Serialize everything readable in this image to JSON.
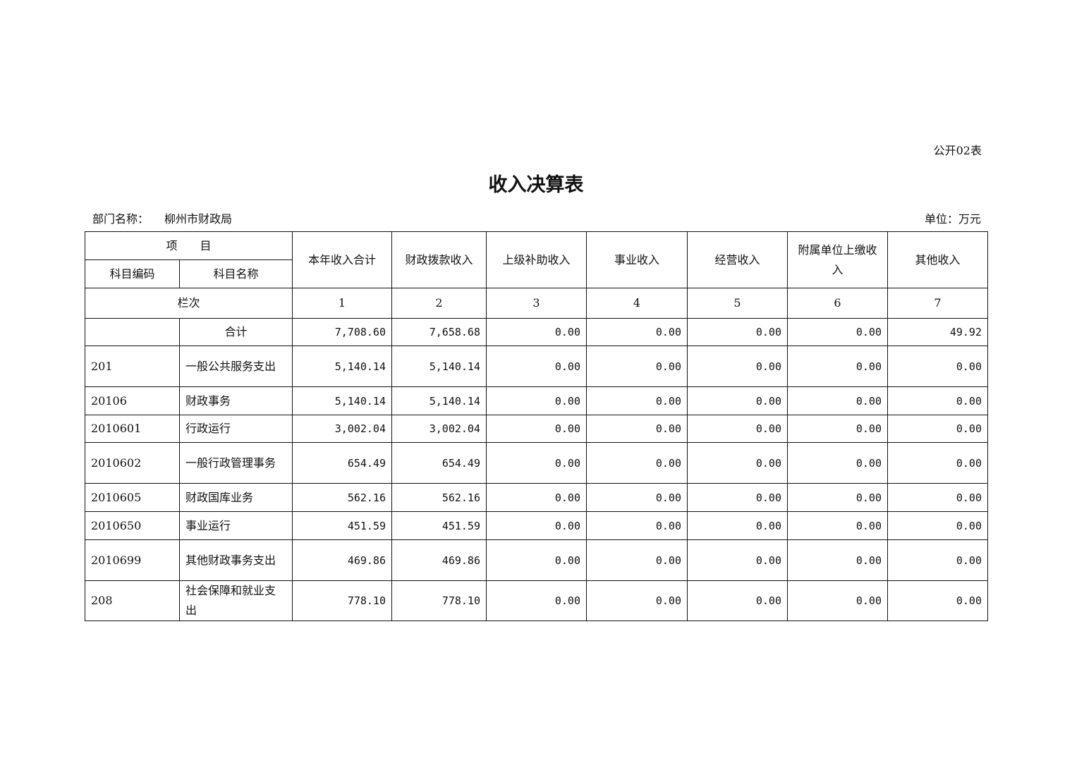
{
  "form_no": "公开02表",
  "title": "收入决算表",
  "dept_label": "部门名称：",
  "dept_name": "柳州市财政局",
  "unit": "单位：万元",
  "header": {
    "item": "项　　目",
    "code": "科目编码",
    "name": "科目名称",
    "columns": [
      "本年收入合计",
      "财政拨款收入",
      "上级补助收入",
      "事业收入",
      "经营收入",
      "附属单位上缴收入",
      "其他收入"
    ],
    "row_label": "栏次",
    "col_numbers": [
      "1",
      "2",
      "3",
      "4",
      "5",
      "6",
      "7"
    ]
  },
  "rows": [
    {
      "code": "",
      "name": "合计",
      "values": [
        "7,708.60",
        "7,658.68",
        "0.00",
        "0.00",
        "0.00",
        "0.00",
        "49.92"
      ]
    },
    {
      "code": "201",
      "name": "一般公共服务支出",
      "values": [
        "5,140.14",
        "5,140.14",
        "0.00",
        "0.00",
        "0.00",
        "0.00",
        "0.00"
      ]
    },
    {
      "code": "20106",
      "name": "财政事务",
      "values": [
        "5,140.14",
        "5,140.14",
        "0.00",
        "0.00",
        "0.00",
        "0.00",
        "0.00"
      ]
    },
    {
      "code": "2010601",
      "name": "行政运行",
      "values": [
        "3,002.04",
        "3,002.04",
        "0.00",
        "0.00",
        "0.00",
        "0.00",
        "0.00"
      ]
    },
    {
      "code": "2010602",
      "name": "一般行政管理事务",
      "values": [
        "654.49",
        "654.49",
        "0.00",
        "0.00",
        "0.00",
        "0.00",
        "0.00"
      ]
    },
    {
      "code": "2010605",
      "name": "财政国库业务",
      "values": [
        "562.16",
        "562.16",
        "0.00",
        "0.00",
        "0.00",
        "0.00",
        "0.00"
      ]
    },
    {
      "code": "2010650",
      "name": "事业运行",
      "values": [
        "451.59",
        "451.59",
        "0.00",
        "0.00",
        "0.00",
        "0.00",
        "0.00"
      ]
    },
    {
      "code": "2010699",
      "name": "其他财政事务支出",
      "values": [
        "469.86",
        "469.86",
        "0.00",
        "0.00",
        "0.00",
        "0.00",
        "0.00"
      ]
    },
    {
      "code": "208",
      "name": "社会保障和就业支出",
      "values": [
        "778.10",
        "778.10",
        "0.00",
        "0.00",
        "0.00",
        "0.00",
        "0.00"
      ]
    }
  ]
}
